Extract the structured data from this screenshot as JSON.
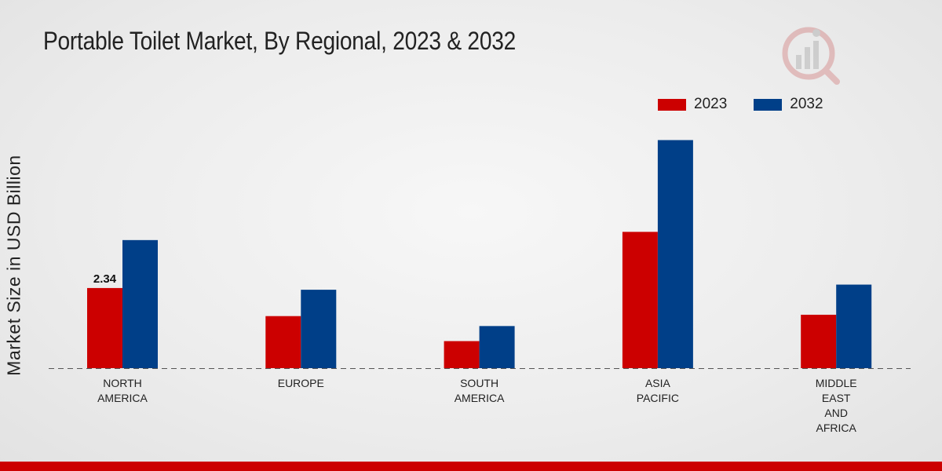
{
  "title": "Portable Toilet Market, By Regional, 2023 & 2032",
  "colors": {
    "series2023": "#cc0000",
    "series2032": "#003f88",
    "accent": "#cc0000"
  },
  "chart_data": {
    "type": "bar",
    "title": "Portable Toilet Market, By Regional, 2023 & 2032",
    "xlabel": "",
    "ylabel": "Market Size in USD Billion",
    "ylim": [
      0,
      8
    ],
    "categories": [
      [
        "NORTH",
        "AMERICA"
      ],
      [
        "EUROPE"
      ],
      [
        "SOUTH",
        "AMERICA"
      ],
      [
        "ASIA",
        "PACIFIC"
      ],
      [
        "MIDDLE",
        "EAST",
        "AND",
        "AFRICA"
      ]
    ],
    "series": [
      {
        "name": "2023",
        "color": "#cc0000",
        "values": [
          2.34,
          1.52,
          0.79,
          3.98,
          1.56
        ]
      },
      {
        "name": "2032",
        "color": "#003f88",
        "values": [
          3.74,
          2.29,
          1.23,
          6.66,
          2.44
        ]
      }
    ],
    "data_labels": [
      {
        "series": 0,
        "index": 0,
        "text": "2.34"
      }
    ],
    "legend": {
      "position": "top-right",
      "entries": [
        "2023",
        "2032"
      ]
    },
    "grid": false
  }
}
